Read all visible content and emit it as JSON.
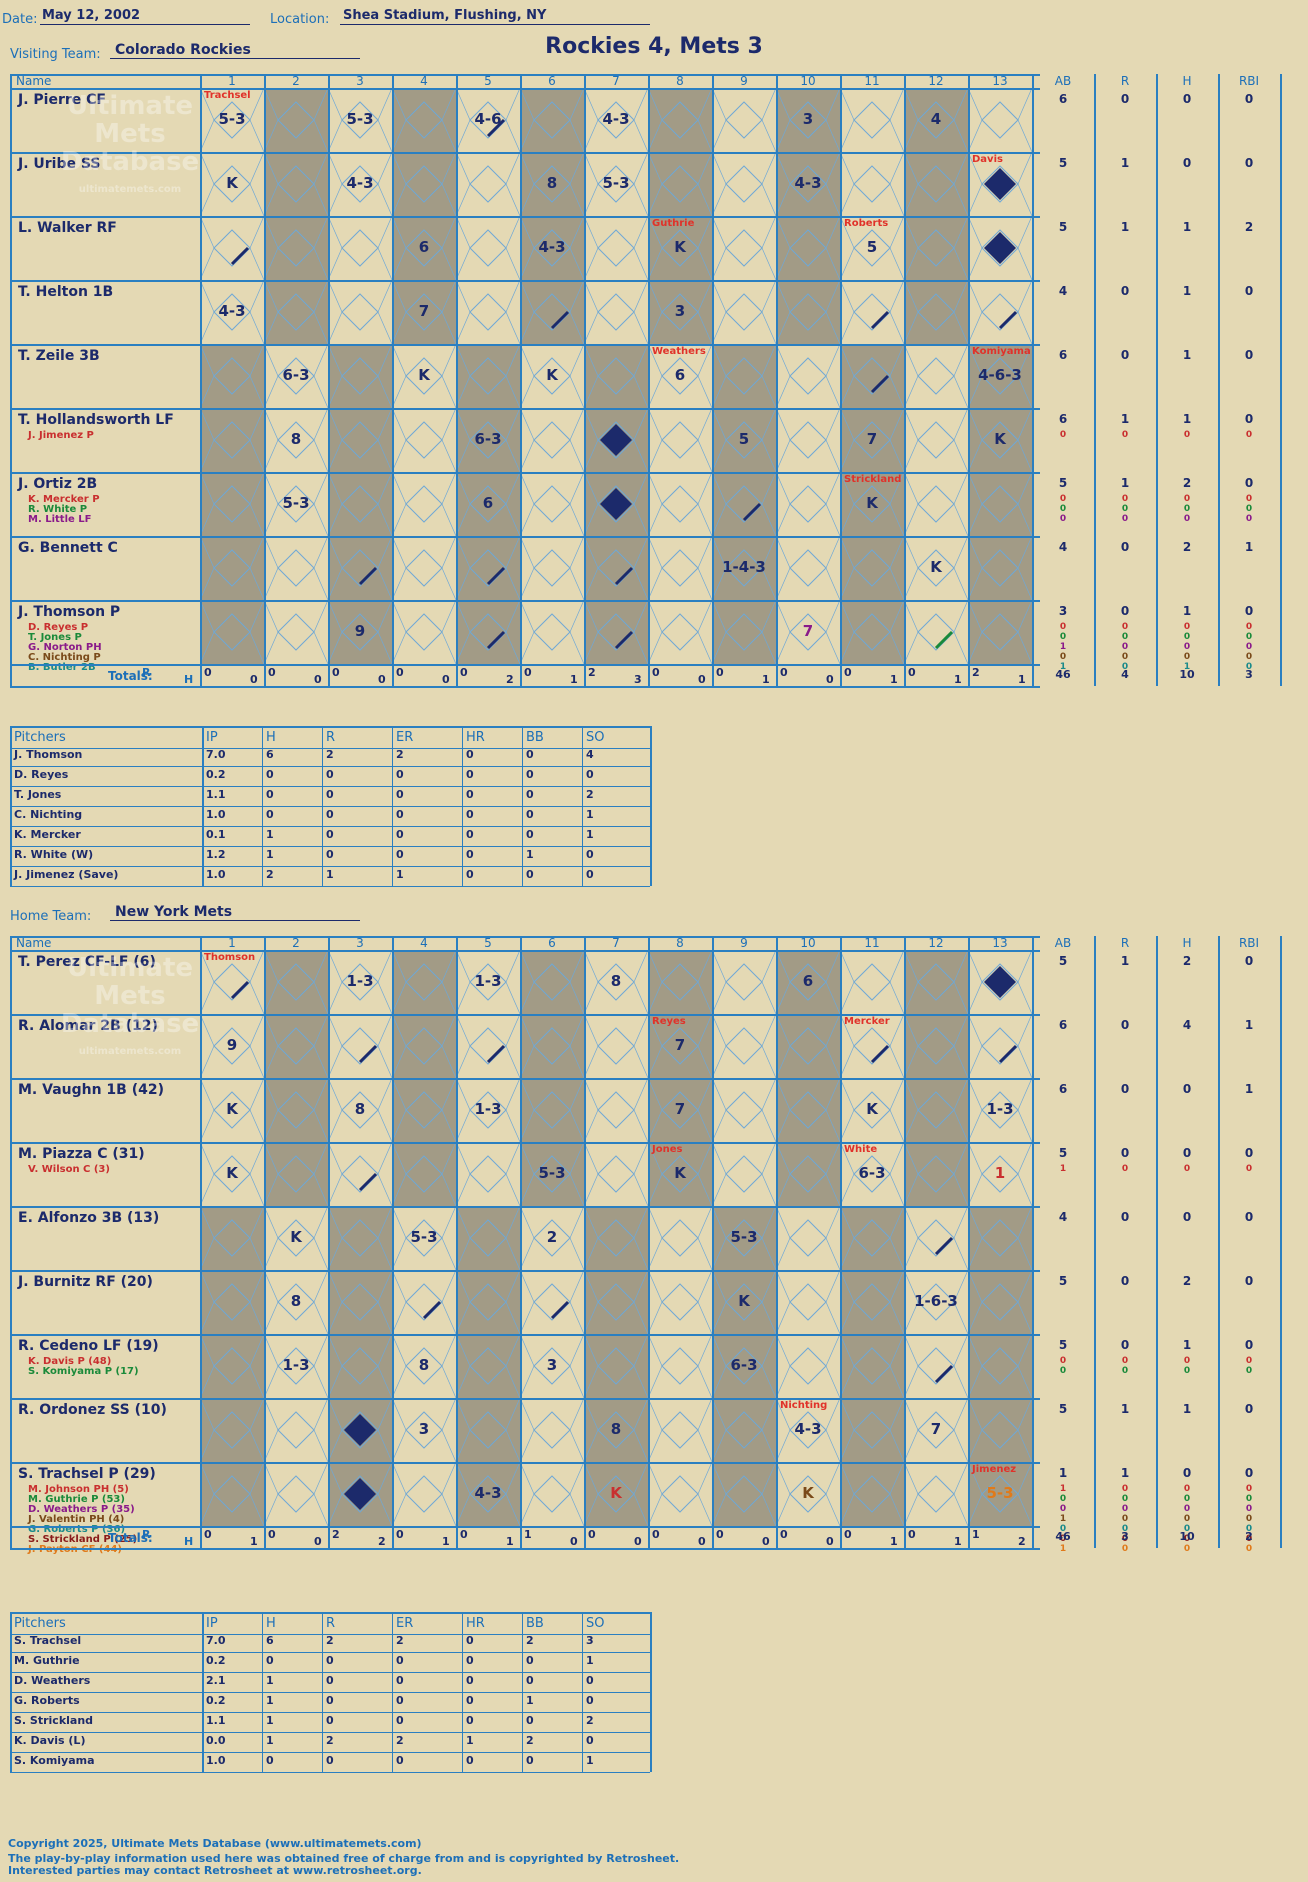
{
  "header": {
    "date_label": "Date:",
    "date": "May 12, 2002",
    "location_label": "Location:",
    "location": "Shea Stadium, Flushing, NY",
    "title": "Rockies 4, Mets 3",
    "visiting_label": "Visiting Team:",
    "visiting_team": "Colorado Rockies",
    "home_label": "Home Team:",
    "home_team": "New York Mets"
  },
  "columns": {
    "name": "Name",
    "innings": [
      "1",
      "2",
      "3",
      "4",
      "5",
      "6",
      "7",
      "8",
      "9",
      "10",
      "11",
      "12",
      "13"
    ],
    "stats": [
      "AB",
      "R",
      "H",
      "RBI"
    ],
    "totals_label": "Totals:",
    "r_label": "R",
    "h_label": "H"
  },
  "watermark": [
    "Ultimate",
    "Mets",
    "Database",
    "ultimatemets.com"
  ],
  "visitors": {
    "batters": [
      {
        "name": "J. Pierre CF",
        "subs": [],
        "stats": [
          "6",
          "0",
          "0",
          "0"
        ],
        "substats": []
      },
      {
        "name": "J. Uribe SS",
        "subs": [],
        "stats": [
          "5",
          "1",
          "0",
          "0"
        ],
        "substats": []
      },
      {
        "name": "L. Walker RF",
        "subs": [],
        "stats": [
          "5",
          "1",
          "1",
          "2"
        ],
        "substats": []
      },
      {
        "name": "T. Helton 1B",
        "subs": [],
        "stats": [
          "4",
          "0",
          "1",
          "0"
        ],
        "substats": []
      },
      {
        "name": "T. Zeile 3B",
        "subs": [],
        "stats": [
          "6",
          "0",
          "1",
          "0"
        ],
        "substats": []
      },
      {
        "name": "T. Hollandsworth LF",
        "subs": [
          {
            "n": "J. Jimenez P",
            "c": "#c92f2f"
          }
        ],
        "stats": [
          "6",
          "1",
          "1",
          "0"
        ],
        "substats": [
          [
            "0",
            "0",
            "0",
            "0"
          ]
        ]
      },
      {
        "name": "J. Ortiz 2B",
        "subs": [
          {
            "n": "K. Mercker P",
            "c": "#c92f2f"
          },
          {
            "n": "R. White P",
            "c": "#1a8a3a"
          },
          {
            "n": "M. Little LF",
            "c": "#8a1a8a"
          }
        ],
        "stats": [
          "5",
          "1",
          "2",
          "0"
        ],
        "substats": [
          [
            "0",
            "0",
            "0",
            "0"
          ],
          [
            "0",
            "0",
            "0",
            "0"
          ],
          [
            "0",
            "0",
            "0",
            "0"
          ]
        ]
      },
      {
        "name": "G. Bennett C",
        "subs": [],
        "stats": [
          "4",
          "0",
          "2",
          "1"
        ],
        "substats": []
      },
      {
        "name": "J. Thomson P",
        "subs": [
          {
            "n": "D. Reyes P",
            "c": "#c92f2f"
          },
          {
            "n": "T. Jones P",
            "c": "#1a8a3a"
          },
          {
            "n": "G. Norton PH",
            "c": "#8a1a8a"
          },
          {
            "n": "C. Nichting P",
            "c": "#7a4a1a"
          },
          {
            "n": "B. Butler 2B",
            "c": "#1a8a8a"
          }
        ],
        "stats": [
          "3",
          "0",
          "1",
          "0"
        ],
        "substats": [
          [
            "0",
            "0",
            "0",
            "0"
          ],
          [
            "0",
            "0",
            "0",
            "0"
          ],
          [
            "1",
            "0",
            "0",
            "0"
          ],
          [
            "0",
            "0",
            "0",
            "0"
          ],
          [
            "1",
            "0",
            "1",
            "0"
          ]
        ]
      }
    ],
    "marks": [
      [
        {
          "i": 1,
          "t": "5-3"
        },
        {
          "i": 3,
          "t": "5-3"
        },
        {
          "i": 5,
          "t": "4-6",
          "line": true
        },
        {
          "i": 7,
          "t": "4-3"
        },
        {
          "i": 10,
          "t": "3"
        },
        {
          "i": 12,
          "t": "4"
        }
      ],
      [
        {
          "i": 1,
          "t": "K"
        },
        {
          "i": 3,
          "t": "4-3"
        },
        {
          "i": 6,
          "t": "8"
        },
        {
          "i": 7,
          "t": "5-3"
        },
        {
          "i": 10,
          "t": "4-3"
        },
        {
          "i": 13,
          "t": "",
          "diamond": true
        }
      ],
      [
        {
          "i": 1,
          "t": "",
          "line": true
        },
        {
          "i": 4,
          "t": "6"
        },
        {
          "i": 6,
          "t": "4-3"
        },
        {
          "i": 8,
          "t": "K"
        },
        {
          "i": 11,
          "t": "5"
        },
        {
          "i": 13,
          "t": "",
          "diamond": true
        }
      ],
      [
        {
          "i": 1,
          "t": "4-3"
        },
        {
          "i": 4,
          "t": "7"
        },
        {
          "i": 6,
          "t": "",
          "line": true
        },
        {
          "i": 8,
          "t": "3"
        },
        {
          "i": 11,
          "t": "",
          "line": true
        },
        {
          "i": 13,
          "t": "",
          "line": true
        }
      ],
      [
        {
          "i": 2,
          "t": "6-3"
        },
        {
          "i": 4,
          "t": "K"
        },
        {
          "i": 6,
          "t": "K"
        },
        {
          "i": 8,
          "t": "6"
        },
        {
          "i": 11,
          "t": "",
          "line": true
        },
        {
          "i": 13,
          "t": "4-6-3"
        }
      ],
      [
        {
          "i": 2,
          "t": "8"
        },
        {
          "i": 5,
          "t": "6-3"
        },
        {
          "i": 7,
          "t": "",
          "diamond": true
        },
        {
          "i": 9,
          "t": "5"
        },
        {
          "i": 11,
          "t": "7"
        },
        {
          "i": 13,
          "t": "K"
        }
      ],
      [
        {
          "i": 2,
          "t": "5-3"
        },
        {
          "i": 5,
          "t": "6"
        },
        {
          "i": 7,
          "t": "",
          "diamond": true
        },
        {
          "i": 9,
          "t": "",
          "line": true
        },
        {
          "i": 11,
          "t": "K"
        }
      ],
      [
        {
          "i": 3,
          "t": "",
          "line": true
        },
        {
          "i": 5,
          "t": "",
          "line": true
        },
        {
          "i": 7,
          "t": "",
          "line": true
        },
        {
          "i": 9,
          "t": "1-4-3"
        },
        {
          "i": 12,
          "t": "K"
        }
      ],
      [
        {
          "i": 3,
          "t": "9"
        },
        {
          "i": 5,
          "t": "",
          "line": true
        },
        {
          "i": 7,
          "t": "",
          "line": true
        },
        {
          "i": 10,
          "t": "7",
          "color": "#8a1a8a"
        },
        {
          "i": 12,
          "t": "",
          "line": true,
          "color": "#1a8a3a"
        }
      ]
    ],
    "notes": [
      {
        "row": 0,
        "i": 1,
        "t": "Trachsel"
      },
      {
        "row": 1,
        "i": 13,
        "t": "Davis"
      },
      {
        "row": 2,
        "i": 8,
        "t": "Guthrie"
      },
      {
        "row": 2,
        "i": 11,
        "t": "Roberts"
      },
      {
        "row": 4,
        "i": 8,
        "t": "Weathers"
      },
      {
        "row": 4,
        "i": 13,
        "t": "Komiyama"
      },
      {
        "row": 6,
        "i": 11,
        "t": "Strickland"
      }
    ],
    "totals": [
      [
        "0",
        "0"
      ],
      [
        "0",
        "0"
      ],
      [
        "0",
        "0"
      ],
      [
        "0",
        "0"
      ],
      [
        "0",
        "2"
      ],
      [
        "0",
        "1"
      ],
      [
        "2",
        "3"
      ],
      [
        "0",
        "0"
      ],
      [
        "0",
        "1"
      ],
      [
        "0",
        "0"
      ],
      [
        "0",
        "1"
      ],
      [
        "0",
        "1"
      ],
      [
        "2",
        "1"
      ]
    ],
    "grand": [
      "46",
      "4",
      "10",
      "3"
    ]
  },
  "visitor_pitchers": {
    "headers": [
      "Pitchers",
      "IP",
      "H",
      "R",
      "ER",
      "HR",
      "BB",
      "SO"
    ],
    "rows": [
      [
        "J. Thomson",
        "7.0",
        "6",
        "2",
        "2",
        "0",
        "0",
        "4"
      ],
      [
        "D. Reyes",
        "0.2",
        "0",
        "0",
        "0",
        "0",
        "0",
        "0"
      ],
      [
        "T. Jones",
        "1.1",
        "0",
        "0",
        "0",
        "0",
        "0",
        "2"
      ],
      [
        "C. Nichting",
        "1.0",
        "0",
        "0",
        "0",
        "0",
        "0",
        "1"
      ],
      [
        "K. Mercker",
        "0.1",
        "1",
        "0",
        "0",
        "0",
        "0",
        "1"
      ],
      [
        "R. White (W)",
        "1.2",
        "1",
        "0",
        "0",
        "0",
        "1",
        "0"
      ],
      [
        "J. Jimenez (Save)",
        "1.0",
        "2",
        "1",
        "1",
        "0",
        "0",
        "0"
      ]
    ]
  },
  "home": {
    "batters": [
      {
        "name": "T. Perez CF-LF (6)",
        "subs": [],
        "stats": [
          "5",
          "1",
          "2",
          "0"
        ],
        "substats": []
      },
      {
        "name": "R. Alomar 2B (12)",
        "subs": [],
        "stats": [
          "6",
          "0",
          "4",
          "1"
        ],
        "substats": []
      },
      {
        "name": "M. Vaughn 1B (42)",
        "subs": [],
        "stats": [
          "6",
          "0",
          "0",
          "1"
        ],
        "substats": []
      },
      {
        "name": "M. Piazza C (31)",
        "subs": [
          {
            "n": "V. Wilson C (3)",
            "c": "#c92f2f"
          }
        ],
        "stats": [
          "5",
          "0",
          "0",
          "0"
        ],
        "substats": [
          [
            "1",
            "0",
            "0",
            "0"
          ]
        ]
      },
      {
        "name": "E. Alfonzo 3B (13)",
        "subs": [],
        "stats": [
          "4",
          "0",
          "0",
          "0"
        ],
        "substats": []
      },
      {
        "name": "J. Burnitz RF (20)",
        "subs": [],
        "stats": [
          "5",
          "0",
          "2",
          "0"
        ],
        "substats": []
      },
      {
        "name": "R. Cedeno LF (19)",
        "subs": [
          {
            "n": "K. Davis P (48)",
            "c": "#c92f2f"
          },
          {
            "n": "S. Komiyama P (17)",
            "c": "#1a8a3a"
          }
        ],
        "stats": [
          "5",
          "0",
          "1",
          "0"
        ],
        "substats": [
          [
            "0",
            "0",
            "0",
            "0"
          ],
          [
            "0",
            "0",
            "0",
            "0"
          ]
        ]
      },
      {
        "name": "R. Ordonez SS (10)",
        "subs": [],
        "stats": [
          "5",
          "1",
          "1",
          "0"
        ],
        "substats": []
      },
      {
        "name": "S. Trachsel P (29)",
        "subs": [
          {
            "n": "M. Johnson PH (5)",
            "c": "#c92f2f"
          },
          {
            "n": "M. Guthrie P (53)",
            "c": "#1a8a3a"
          },
          {
            "n": "D. Weathers P (35)",
            "c": "#8a1a8a"
          },
          {
            "n": "J. Valentin PH (4)",
            "c": "#7a4a1a"
          },
          {
            "n": "G. Roberts P (36)",
            "c": "#1a8a8a"
          },
          {
            "n": "S. Strickland P (25)",
            "c": "#8a1a1a"
          },
          {
            "n": "J. Payton CF (44)",
            "c": "#e07a1a"
          }
        ],
        "stats": [
          "1",
          "1",
          "0",
          "0"
        ],
        "substats": [
          [
            "1",
            "0",
            "0",
            "0"
          ],
          [
            "0",
            "0",
            "0",
            "0"
          ],
          [
            "0",
            "0",
            "0",
            "0"
          ],
          [
            "1",
            "0",
            "0",
            "0"
          ],
          [
            "0",
            "0",
            "0",
            "0"
          ],
          [
            "0",
            "0",
            "0",
            "0"
          ],
          [
            "1",
            "0",
            "0",
            "0"
          ]
        ]
      }
    ],
    "marks": [
      [
        {
          "i": 1,
          "t": "",
          "line": true
        },
        {
          "i": 3,
          "t": "1-3"
        },
        {
          "i": 5,
          "t": "1-3"
        },
        {
          "i": 7,
          "t": "8"
        },
        {
          "i": 10,
          "t": "6"
        },
        {
          "i": 13,
          "t": "",
          "diamond": true
        }
      ],
      [
        {
          "i": 1,
          "t": "9"
        },
        {
          "i": 3,
          "t": "",
          "line": true
        },
        {
          "i": 5,
          "t": "",
          "line": true
        },
        {
          "i": 8,
          "t": "7"
        },
        {
          "i": 11,
          "t": "",
          "line": true
        },
        {
          "i": 13,
          "t": "",
          "line": true
        }
      ],
      [
        {
          "i": 1,
          "t": "K"
        },
        {
          "i": 3,
          "t": "8"
        },
        {
          "i": 5,
          "t": "1-3"
        },
        {
          "i": 8,
          "t": "7"
        },
        {
          "i": 11,
          "t": "K"
        },
        {
          "i": 13,
          "t": "1-3"
        }
      ],
      [
        {
          "i": 1,
          "t": "K"
        },
        {
          "i": 3,
          "t": "",
          "line": true
        },
        {
          "i": 6,
          "t": "5-3"
        },
        {
          "i": 8,
          "t": "K"
        },
        {
          "i": 11,
          "t": "6-3"
        },
        {
          "i": 13,
          "t": "1",
          "color": "#c92f2f"
        }
      ],
      [
        {
          "i": 2,
          "t": "K"
        },
        {
          "i": 4,
          "t": "5-3"
        },
        {
          "i": 6,
          "t": "2"
        },
        {
          "i": 9,
          "t": "5-3"
        },
        {
          "i": 12,
          "t": "",
          "line": true
        }
      ],
      [
        {
          "i": 2,
          "t": "8"
        },
        {
          "i": 4,
          "t": "",
          "line": true
        },
        {
          "i": 6,
          "t": "",
          "line": true
        },
        {
          "i": 9,
          "t": "K"
        },
        {
          "i": 12,
          "t": "1-6-3"
        }
      ],
      [
        {
          "i": 2,
          "t": "1-3"
        },
        {
          "i": 4,
          "t": "8"
        },
        {
          "i": 6,
          "t": "3"
        },
        {
          "i": 9,
          "t": "6-3"
        },
        {
          "i": 12,
          "t": "",
          "line": true
        }
      ],
      [
        {
          "i": 3,
          "t": "",
          "diamond": true
        },
        {
          "i": 4,
          "t": "3"
        },
        {
          "i": 7,
          "t": "8"
        },
        {
          "i": 10,
          "t": "4-3"
        },
        {
          "i": 12,
          "t": "7"
        }
      ],
      [
        {
          "i": 3,
          "t": "",
          "diamond": true
        },
        {
          "i": 5,
          "t": "4-3"
        },
        {
          "i": 7,
          "t": "K",
          "color": "#c92f2f"
        },
        {
          "i": 10,
          "t": "K",
          "color": "#7a4a1a"
        },
        {
          "i": 13,
          "t": "5-3",
          "color": "#e07a1a"
        }
      ]
    ],
    "notes": [
      {
        "row": 0,
        "i": 1,
        "t": "Thomson"
      },
      {
        "row": 1,
        "i": 8,
        "t": "Reyes"
      },
      {
        "row": 1,
        "i": 11,
        "t": "Mercker"
      },
      {
        "row": 3,
        "i": 8,
        "t": "Jones"
      },
      {
        "row": 3,
        "i": 11,
        "t": "White"
      },
      {
        "row": 7,
        "i": 10,
        "t": "Nichting"
      },
      {
        "row": 8,
        "i": 13,
        "t": "Jimenez"
      }
    ],
    "totals": [
      [
        "0",
        "1"
      ],
      [
        "0",
        "0"
      ],
      [
        "2",
        "2"
      ],
      [
        "0",
        "1"
      ],
      [
        "0",
        "1"
      ],
      [
        "1",
        "0"
      ],
      [
        "0",
        "0"
      ],
      [
        "0",
        "0"
      ],
      [
        "0",
        "0"
      ],
      [
        "0",
        "0"
      ],
      [
        "0",
        "1"
      ],
      [
        "0",
        "1"
      ],
      [
        "1",
        "2"
      ]
    ],
    "grand": [
      "46",
      "3",
      "10",
      "2"
    ]
  },
  "home_pitchers": {
    "headers": [
      "Pitchers",
      "IP",
      "H",
      "R",
      "ER",
      "HR",
      "BB",
      "SO"
    ],
    "rows": [
      [
        "S. Trachsel",
        "7.0",
        "6",
        "2",
        "2",
        "0",
        "2",
        "3"
      ],
      [
        "M. Guthrie",
        "0.2",
        "0",
        "0",
        "0",
        "0",
        "0",
        "1"
      ],
      [
        "D. Weathers",
        "2.1",
        "1",
        "0",
        "0",
        "0",
        "0",
        "0"
      ],
      [
        "G. Roberts",
        "0.2",
        "1",
        "0",
        "0",
        "0",
        "1",
        "0"
      ],
      [
        "S. Strickland",
        "1.1",
        "1",
        "0",
        "0",
        "0",
        "0",
        "2"
      ],
      [
        "K. Davis (L)",
        "0.0",
        "1",
        "2",
        "2",
        "1",
        "2",
        "0"
      ],
      [
        "S. Komiyama",
        "1.0",
        "0",
        "0",
        "0",
        "0",
        "0",
        "1"
      ]
    ]
  },
  "footer": [
    "Copyright 2025, Ultimate Mets Database (www.ultimatemets.com)",
    "The play-by-play information used here was obtained free of charge from and is copyrighted by Retrosheet.",
    "Interested parties may contact Retrosheet at www.retrosheet.org."
  ]
}
